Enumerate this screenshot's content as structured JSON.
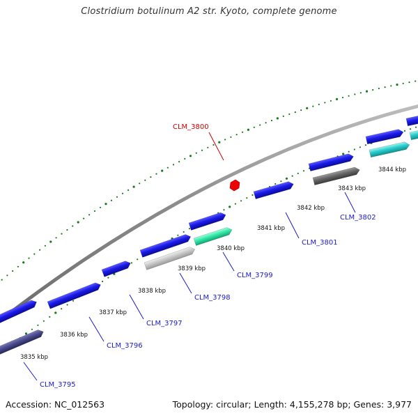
{
  "title": "Clostridium botulinum A2 str. Kyoto, complete genome",
  "footer": {
    "accession": "Accession: NC_012563",
    "stats": "Topology: circular; Length: 4,155,278 bp; Genes: 3,977"
  },
  "colors": {
    "backbone": "#8a8a8a",
    "ticks": "#1a7a1a",
    "gene_forward": "#1414e0",
    "label_blue": "#1a1acc",
    "label_red": "#cc0000",
    "highlight": "#ee0000"
  },
  "kbp_labels": [
    "3835 kbp",
    "3836 kbp",
    "3837 kbp",
    "3838 kbp",
    "3839 kbp",
    "3840 kbp",
    "3841 kbp",
    "3842 kbp",
    "3843 kbp",
    "3844 kbp"
  ],
  "genes": [
    {
      "name": "CLM_3795",
      "color": "#1a1acc"
    },
    {
      "name": "CLM_3796",
      "color": "#1a1acc"
    },
    {
      "name": "CLM_3797",
      "color": "#1a1acc"
    },
    {
      "name": "CLM_3798",
      "color": "#1a1acc"
    },
    {
      "name": "CLM_3799",
      "color": "#1a1acc"
    },
    {
      "name": "CLM_3800",
      "color": "#cc0000"
    },
    {
      "name": "CLM_3801",
      "color": "#1a1acc"
    },
    {
      "name": "CLM_3802",
      "color": "#1a1acc"
    }
  ]
}
